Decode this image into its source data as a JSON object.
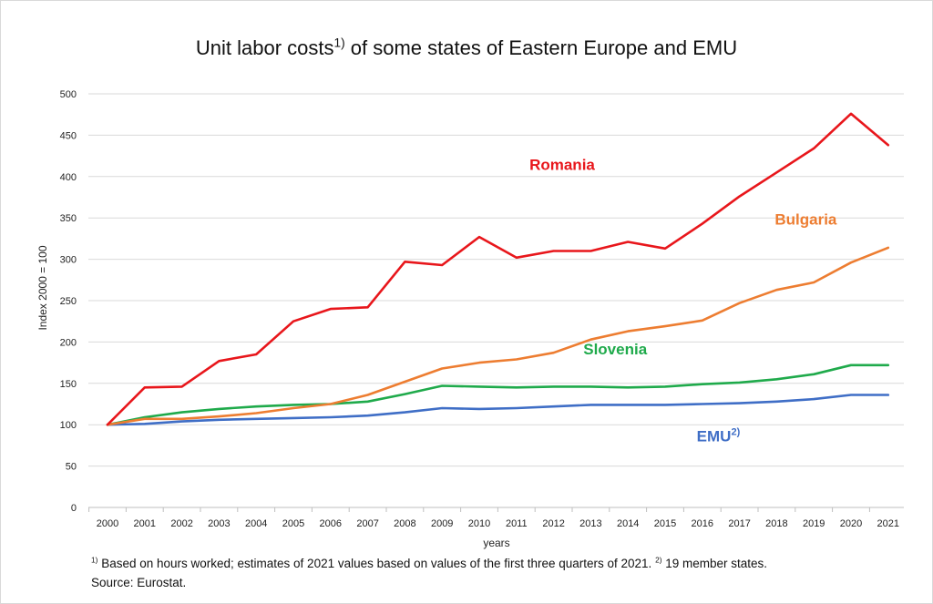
{
  "chart_data": {
    "type": "line",
    "title": "Unit labor costs",
    "title_sup": "1)",
    "title_rest": " of some states of Eastern Europe and EMU",
    "xlabel": "years",
    "ylabel": "Index 2000 = 100",
    "ylim": [
      0,
      500
    ],
    "yticks": [
      0,
      50,
      100,
      150,
      200,
      250,
      300,
      350,
      400,
      450,
      500
    ],
    "grid": true,
    "legend": "none",
    "x": [
      "2000",
      "2001",
      "2002",
      "2003",
      "2004",
      "2005",
      "2006",
      "2007",
      "2008",
      "2009",
      "2010",
      "2011",
      "2012",
      "2013",
      "2014",
      "2015",
      "2016",
      "2017",
      "2018",
      "2019",
      "2020",
      "2021"
    ],
    "series": [
      {
        "name": "Romania",
        "label_sup": "",
        "color": "#e8161b",
        "label_at": [
          2011.35,
          408
        ],
        "values": [
          100,
          145,
          146,
          177,
          185,
          225,
          240,
          242,
          297,
          293,
          327,
          302,
          310,
          310,
          321,
          313,
          343,
          376,
          405,
          434,
          476,
          438
        ]
      },
      {
        "name": "Bulgaria",
        "label_sup": "",
        "color": "#ed7d31",
        "label_at": [
          2017.95,
          342
        ],
        "values": [
          100,
          107,
          107,
          110,
          114,
          120,
          125,
          136,
          152,
          168,
          175,
          179,
          187,
          203,
          213,
          219,
          226,
          247,
          263,
          272,
          296,
          314
        ]
      },
      {
        "name": "Slovenia",
        "label_sup": "",
        "color": "#1faa4b",
        "label_at": [
          2012.8,
          185
        ],
        "values": [
          100,
          109,
          115,
          119,
          122,
          124,
          125,
          128,
          137,
          147,
          146,
          145,
          146,
          146,
          145,
          146,
          149,
          151,
          155,
          161,
          172,
          172
        ]
      },
      {
        "name": "EMU",
        "label_sup": "2)",
        "color": "#3f6ec6",
        "label_at": [
          2015.85,
          80
        ],
        "values": [
          100,
          101,
          104,
          106,
          107,
          108,
          109,
          111,
          115,
          120,
          119,
          120,
          122,
          124,
          124,
          124,
          125,
          126,
          128,
          131,
          136,
          136
        ]
      }
    ]
  },
  "footnote": {
    "line1_sup1": "1)",
    "line1_text1": " Based on hours worked; estimates of 2021 values based on values of the first three quarters of 2021. ",
    "line1_sup2": "2)",
    "line1_text2": " 19 member states.",
    "line2": "Source: Eurostat."
  }
}
